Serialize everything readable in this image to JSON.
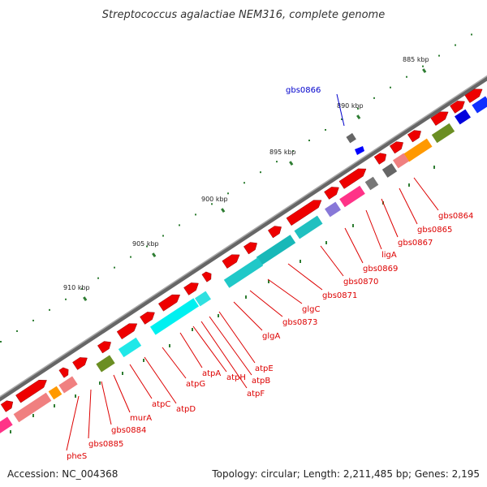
{
  "title": "Streptococcus agalactiae NEM316, complete genome",
  "footer": {
    "accession": "Accession: NC_004368",
    "summary": "Topology: circular; Length: 2,211,485 bp; Genes: 2,195"
  },
  "colors": {
    "backbone": "#8a8a8a",
    "tick_major": "#2e7d32",
    "tick_minor": "#2e7d32",
    "label_red": "#dd0000",
    "label_blue": "#0000cc",
    "cds_forward": "#ee0000",
    "cds_reverse": "#ee1111",
    "atp_operon": "#00e5ee",
    "glg_operon": "#14c8c8",
    "highlight_blue": "#0000ff"
  },
  "scale": {
    "unit": "kbp",
    "labels": [
      "885 kbp",
      "890 kbp",
      "895 kbp",
      "900 kbp",
      "905 kbp",
      "910 kbp"
    ]
  },
  "genes": [
    {
      "label": "gbs0864",
      "color": "red"
    },
    {
      "label": "gbs0865",
      "color": "red"
    },
    {
      "label": "gbs0866",
      "color": "blue"
    },
    {
      "label": "gbs0867",
      "color": "red"
    },
    {
      "label": "ligA",
      "color": "red"
    },
    {
      "label": "gbs0869",
      "color": "red"
    },
    {
      "label": "gbs0870",
      "color": "red"
    },
    {
      "label": "gbs0871",
      "color": "red"
    },
    {
      "label": "glgC",
      "color": "red"
    },
    {
      "label": "gbs0873",
      "color": "red"
    },
    {
      "label": "glgA",
      "color": "red"
    },
    {
      "label": "atpE",
      "color": "red"
    },
    {
      "label": "atpB",
      "color": "red"
    },
    {
      "label": "atpF",
      "color": "red"
    },
    {
      "label": "atpH",
      "color": "red"
    },
    {
      "label": "atpA",
      "color": "red"
    },
    {
      "label": "atpG",
      "color": "red"
    },
    {
      "label": "atpD",
      "color": "red"
    },
    {
      "label": "atpC",
      "color": "red"
    },
    {
      "label": "murA",
      "color": "red"
    },
    {
      "label": "gbs0884",
      "color": "red"
    },
    {
      "label": "gbs0885",
      "color": "red"
    },
    {
      "label": "pheS",
      "color": "red"
    }
  ]
}
